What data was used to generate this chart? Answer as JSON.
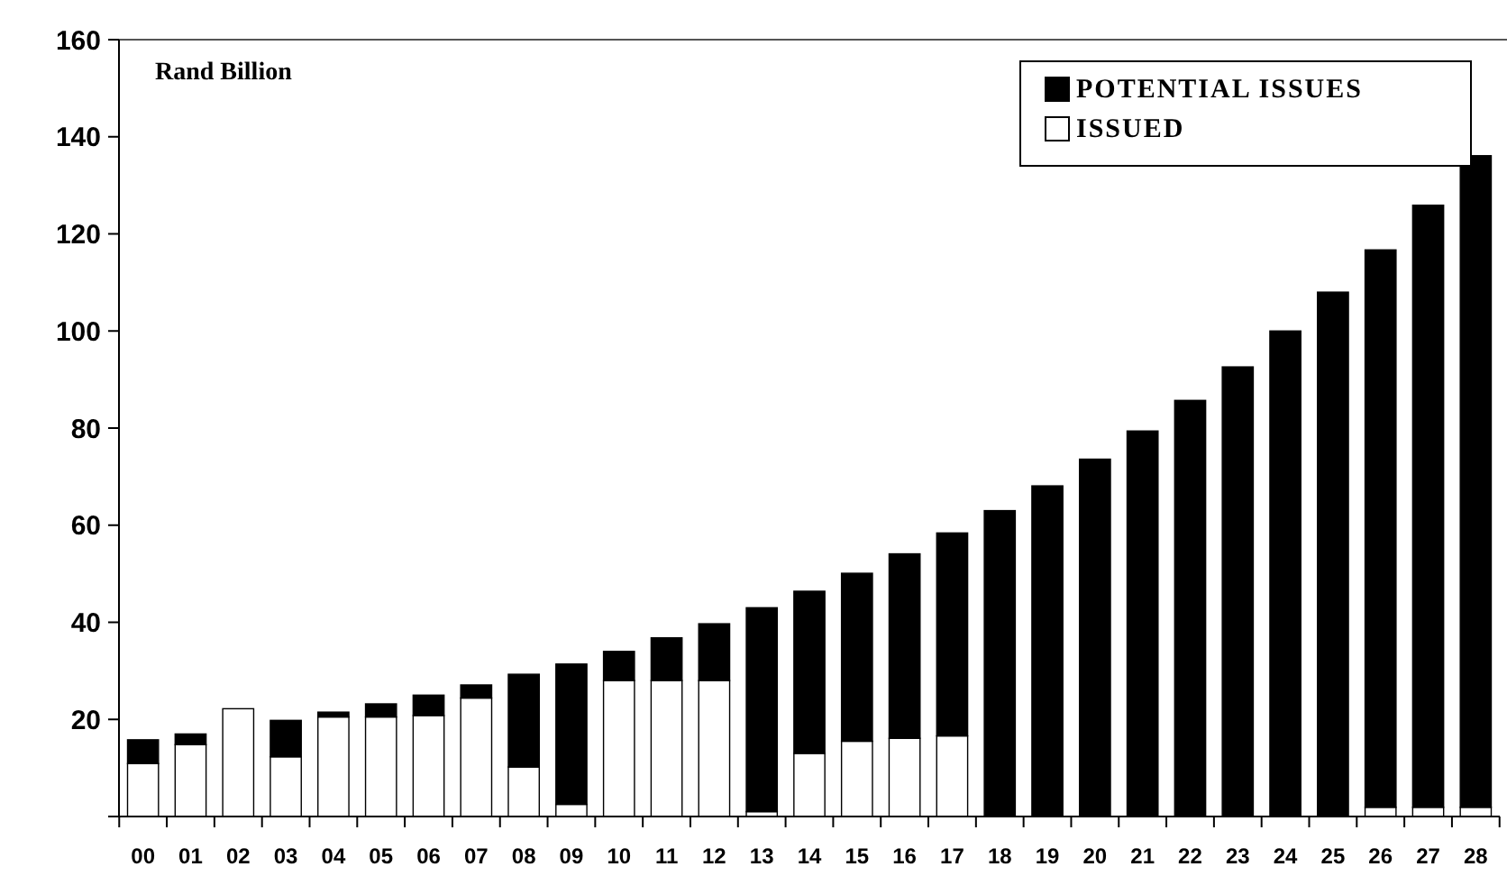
{
  "chart_data": {
    "type": "bar",
    "ylabel": "Rand Billion",
    "stacked": true,
    "legend": "top right",
    "grid": false,
    "categories": [
      "00",
      "01",
      "02",
      "03",
      "04",
      "05",
      "06",
      "07",
      "08",
      "09",
      "10",
      "11",
      "12",
      "13",
      "14",
      "15",
      "16",
      "17",
      "18",
      "19",
      "20",
      "21",
      "22",
      "23",
      "24",
      "25",
      "26",
      "27",
      "28"
    ],
    "series": [
      {
        "name": "ISSUED",
        "color": "#ffffff",
        "values": [
          10.9,
          14.8,
          22.2,
          12.3,
          20.5,
          20.5,
          20.8,
          24.4,
          10.2,
          2.5,
          28,
          28,
          28,
          1,
          13,
          15.5,
          16.1,
          16.6,
          0,
          0,
          0,
          0,
          0,
          0,
          0,
          0,
          1.9,
          1.9,
          1.9
        ]
      },
      {
        "name": "POTENTIAL ISSUES",
        "color": "#000000",
        "values": [
          4.9,
          2.2,
          0,
          7.5,
          1,
          2.7,
          4.2,
          2.7,
          19.1,
          28.9,
          6,
          8.8,
          11.7,
          42,
          33.4,
          34.6,
          38,
          41.8,
          63,
          68.1,
          73.6,
          79.4,
          85.7,
          92.6,
          100,
          108,
          114.8,
          124,
          134.2
        ]
      }
    ],
    "ylim": [
      0,
      160
    ],
    "yticks": [
      {
        "value": 0,
        "label": null
      },
      20,
      40,
      60,
      80,
      100,
      120,
      140,
      160
    ]
  }
}
